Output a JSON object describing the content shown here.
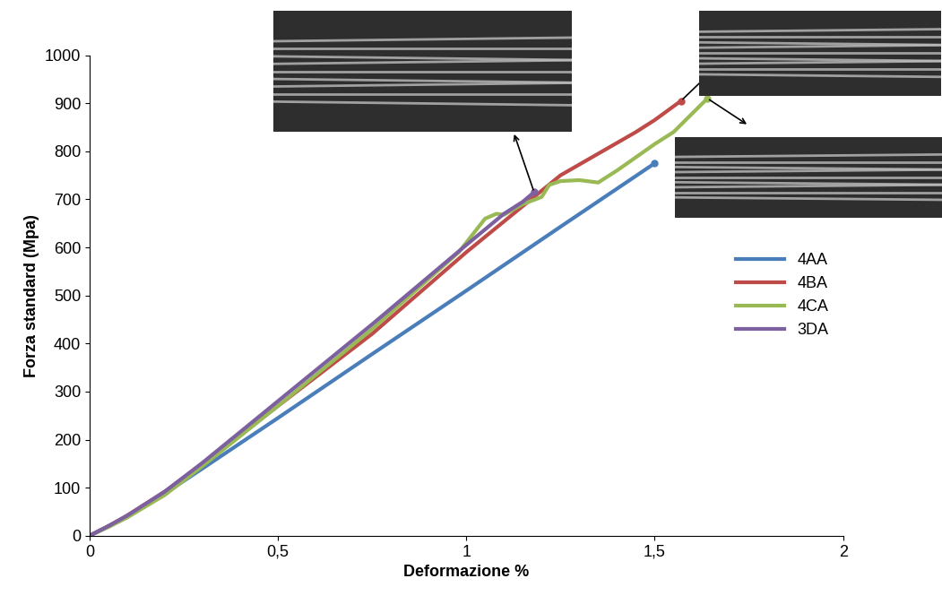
{
  "chart_data": {
    "type": "line",
    "x_label": "Deformazione %",
    "y_label": "Forza standard (Mpa)",
    "xlim": [
      0,
      2
    ],
    "xticks": [
      0,
      {
        "value": 0.5,
        "label": "0,5"
      },
      1,
      {
        "value": 1.5,
        "label": "1,5"
      },
      2
    ],
    "ylim": [
      0,
      1000
    ],
    "yticks": [
      0,
      100,
      200,
      300,
      400,
      500,
      600,
      700,
      800,
      900,
      1000
    ],
    "grid": false,
    "legend": "center right",
    "series": [
      {
        "name": "4AA",
        "color": "#4a7ebb",
        "x": [
          0,
          0.05,
          0.1,
          0.2,
          0.3,
          0.5,
          0.75,
          1.0,
          1.25,
          1.5
        ],
        "values": [
          0,
          20,
          40,
          88,
          140,
          245,
          378,
          510,
          643,
          775
        ]
      },
      {
        "name": "4BA",
        "color": "#be4b48",
        "x": [
          0,
          0.05,
          0.1,
          0.2,
          0.3,
          0.5,
          0.75,
          1.0,
          1.25,
          1.45,
          1.5,
          1.57
        ],
        "values": [
          0,
          20,
          42,
          92,
          150,
          270,
          420,
          590,
          750,
          840,
          865,
          905
        ]
      },
      {
        "name": "4CA",
        "color": "#98b954",
        "x": [
          0,
          0.05,
          0.1,
          0.2,
          0.3,
          0.5,
          0.75,
          0.98,
          1.0,
          1.05,
          1.08,
          1.1,
          1.15,
          1.2,
          1.22,
          1.25,
          1.3,
          1.35,
          1.4,
          1.5,
          1.55,
          1.64
        ],
        "values": [
          0,
          18,
          38,
          85,
          145,
          270,
          430,
          590,
          610,
          660,
          670,
          668,
          690,
          705,
          730,
          738,
          740,
          735,
          760,
          815,
          840,
          910
        ]
      },
      {
        "name": "3DA",
        "color": "#7d60a0",
        "x": [
          0,
          0.05,
          0.1,
          0.2,
          0.3,
          0.5,
          0.75,
          1.0,
          1.1,
          1.15,
          1.18
        ],
        "values": [
          0,
          20,
          42,
          92,
          152,
          280,
          440,
          605,
          670,
          695,
          715
        ]
      }
    ]
  }
}
